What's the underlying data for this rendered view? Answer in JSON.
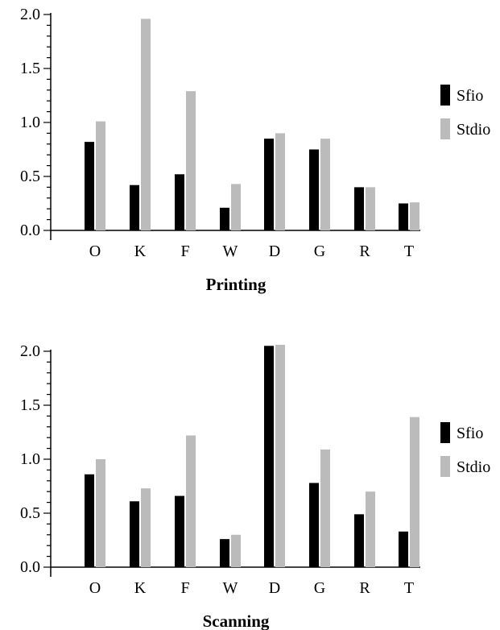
{
  "chart_data": [
    {
      "type": "bar",
      "title": "Printing",
      "xlabel": "",
      "ylabel": "",
      "categories": [
        "O",
        "K",
        "F",
        "W",
        "D",
        "G",
        "R",
        "T"
      ],
      "series": [
        {
          "name": "Sfio",
          "color": "#000000",
          "values": [
            0.82,
            0.42,
            0.52,
            0.21,
            0.85,
            0.75,
            0.4,
            0.25
          ]
        },
        {
          "name": "Stdio",
          "color": "#bbbbbb",
          "values": [
            1.01,
            1.96,
            1.29,
            0.43,
            0.9,
            0.85,
            0.4,
            0.26
          ]
        }
      ],
      "ylim": [
        0,
        2.0
      ],
      "yticks": [
        "0.0",
        "0.5",
        "1.0",
        "1.5",
        "2.0"
      ],
      "grid": false,
      "legend_position": "right"
    },
    {
      "type": "bar",
      "title": "Scanning",
      "xlabel": "",
      "ylabel": "",
      "categories": [
        "O",
        "K",
        "F",
        "W",
        "D",
        "G",
        "R",
        "T"
      ],
      "series": [
        {
          "name": "Sfio",
          "color": "#000000",
          "values": [
            0.86,
            0.61,
            0.66,
            0.26,
            2.05,
            0.78,
            0.49,
            0.33
          ]
        },
        {
          "name": "Stdio",
          "color": "#bbbbbb",
          "values": [
            1.0,
            0.73,
            1.22,
            0.3,
            2.06,
            1.09,
            0.7,
            1.39
          ]
        }
      ],
      "ylim": [
        0,
        2.0
      ],
      "yticks": [
        "0.0",
        "0.5",
        "1.0",
        "1.5",
        "2.0"
      ],
      "grid": false,
      "legend_position": "right"
    }
  ]
}
